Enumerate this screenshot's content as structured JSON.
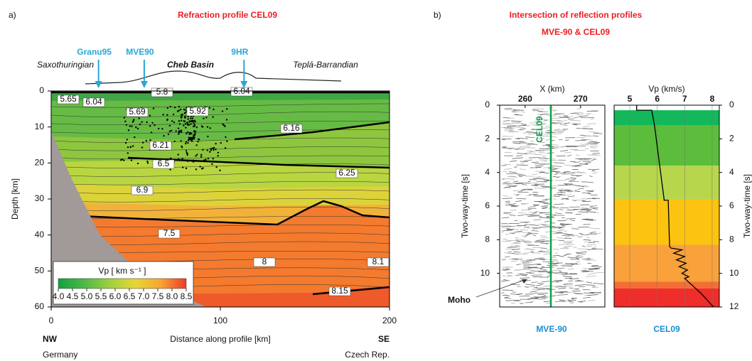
{
  "chart_data": [
    {
      "type": "contour",
      "panel_label": "a)",
      "title": "Refraction profile CEL09",
      "xlabel": "Distance along profile [km]",
      "ylabel": "Depth [km]",
      "xlim": [
        0,
        200
      ],
      "ylim": [
        60,
        0
      ],
      "xticks": [
        0,
        100,
        200
      ],
      "yticks": [
        0,
        10,
        20,
        30,
        40,
        50,
        60
      ],
      "left_end": {
        "direction": "NW",
        "country": "Germany"
      },
      "right_end": {
        "direction": "SE",
        "country": "Czech Rep."
      },
      "regions": [
        "Saxothuringian",
        "Cheb Basin",
        "Teplá-Barrandian"
      ],
      "stations": [
        {
          "name": "Granu95",
          "x": 28
        },
        {
          "name": "MVE90",
          "x": 55
        },
        {
          "name": "9HR",
          "x": 114
        }
      ],
      "contour_labels": [
        5.65,
        6.04,
        5.8,
        6.04,
        5.69,
        5.92,
        6.16,
        6.21,
        6.25,
        6.5,
        6.9,
        7.5,
        8.0,
        8.1,
        8.15
      ],
      "colorbar": {
        "title": "Vp  [ km s⁻¹ ]",
        "ticks": [
          {
            "value": 4,
            "label": "4.0"
          },
          4.5,
          {
            "value": 5,
            "label": "5.0"
          },
          5.5,
          {
            "value": 6,
            "label": "6.0"
          },
          6.5,
          {
            "value": 7,
            "label": "7.0"
          },
          7.5,
          {
            "value": 8,
            "label": "8.0"
          },
          8.5
        ]
      }
    },
    {
      "type": "image",
      "panel_label": "b)",
      "title": "Intersection of reflection profiles",
      "subtitle": "MVE-90 & CEL09",
      "xlabel": "X (km)",
      "ylabel": "Two-way-time [s]",
      "xlim": [
        255.4,
        274.4
      ],
      "xticks": [
        260,
        270
      ],
      "ylim": [
        12,
        0
      ],
      "yticks": [
        0,
        2,
        4,
        6,
        8,
        10
      ],
      "profile_label": "CEL09",
      "annotation": "Moho",
      "caption": "MVE-90"
    },
    {
      "type": "line",
      "xlabel": "Vp (km/s)",
      "ylabel": "Two-way-time [s]",
      "xlim": [
        4.43,
        8.26
      ],
      "xticks": [
        5,
        6,
        7,
        8
      ],
      "ylim": [
        12,
        0
      ],
      "yticks": [
        0,
        2,
        4,
        6,
        8,
        10,
        12
      ],
      "caption": "CEL09",
      "color": "#000000",
      "layers": [
        {
          "from": 0.3,
          "to": 1.2,
          "color": "#12b85a"
        },
        {
          "from": 1.2,
          "to": 3.6,
          "color": "#5cbd3c"
        },
        {
          "from": 3.6,
          "to": 5.6,
          "color": "#b7d64c"
        },
        {
          "from": 5.6,
          "to": 8.3,
          "color": "#fcc310"
        },
        {
          "from": 8.3,
          "to": 10.5,
          "color": "#f9a13a"
        },
        {
          "from": 10.5,
          "to": 10.9,
          "color": "#f46d35"
        },
        {
          "from": 10.9,
          "to": 12,
          "color": "#ef2d2b"
        }
      ],
      "vp": [
        5.25,
        5.25,
        5.8,
        5.9,
        6.25,
        6.25,
        6.4,
        6.45,
        6.5,
        6.9,
        6.6,
        7.0,
        6.7,
        7.05,
        6.8,
        7.1,
        6.9,
        7.15,
        7.0,
        7.2,
        7.6,
        8.05
      ],
      "twt": [
        0,
        0.3,
        0.3,
        1.2,
        5.6,
        5.65,
        5.65,
        8.4,
        8.5,
        8.6,
        8.8,
        9.0,
        9.2,
        9.4,
        9.6,
        9.8,
        10.0,
        10.2,
        10.3,
        10.6,
        11.2,
        12
      ]
    }
  ]
}
